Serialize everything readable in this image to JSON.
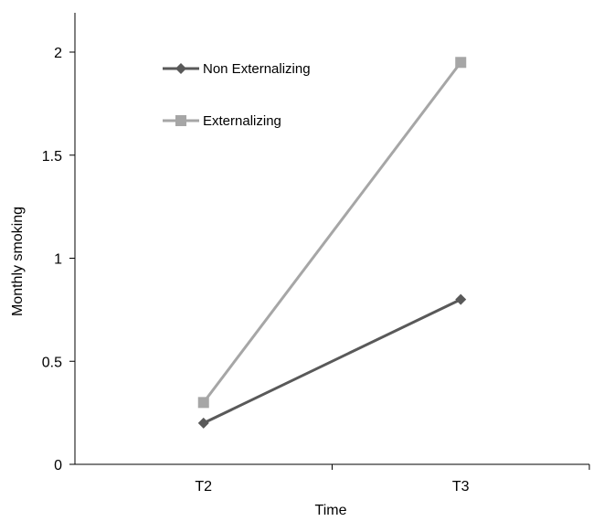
{
  "chart_data": {
    "type": "line",
    "categories": [
      "T2",
      "T3"
    ],
    "series": [
      {
        "name": "Non Externalizing",
        "values": [
          0.2,
          0.8
        ],
        "color": "#595959",
        "marker": "diamond"
      },
      {
        "name": "Externalizing",
        "values": [
          0.3,
          1.95
        ],
        "color": "#a6a6a6",
        "marker": "square"
      }
    ],
    "xlabel": "Time",
    "ylabel": "Monthly smoking",
    "ylim": [
      0,
      2
    ],
    "yticks": [
      0,
      0.5,
      1,
      1.5,
      2
    ],
    "ytick_labels": [
      "0",
      "0.5",
      "1",
      "1.5",
      "2"
    ],
    "grid": false,
    "legend_position": "top-left"
  }
}
